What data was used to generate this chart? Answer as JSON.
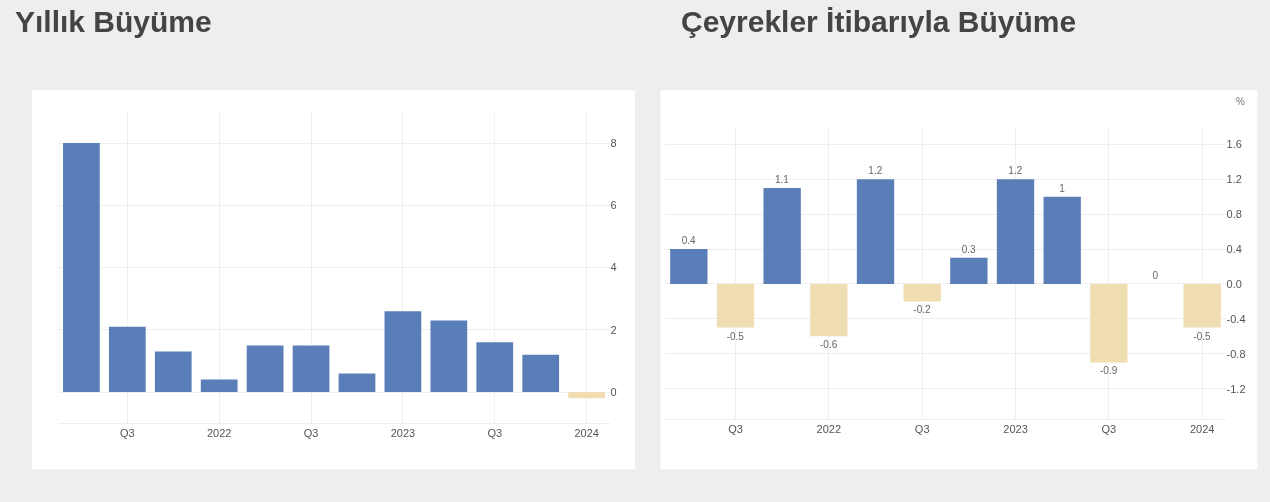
{
  "chart_data": [
    {
      "type": "bar",
      "title": "Yıllık Büyüme",
      "categories": [
        null,
        "Q3",
        null,
        "2022",
        null,
        "Q3",
        null,
        "2023",
        null,
        "Q3",
        null,
        "2024"
      ],
      "values": [
        8.0,
        2.1,
        1.3,
        0.4,
        1.5,
        1.5,
        0.6,
        2.6,
        2.3,
        1.6,
        1.2,
        -0.2
      ],
      "colors": [
        "#5a7fb8",
        "#5a7fb8",
        "#5a7fb8",
        "#5a7fb8",
        "#5a7fb8",
        "#5a7fb8",
        "#5a7fb8",
        "#5a7fb8",
        "#5a7fb8",
        "#5a7fb8",
        "#5a7fb8",
        "#f0ddb2"
      ],
      "ylim": [
        -1,
        9
      ],
      "yticks": [
        0,
        2,
        4,
        6,
        8
      ],
      "grid": true
    },
    {
      "type": "bar",
      "title": "Çeyrekler İtibarıyla Büyüme",
      "ylabel": "%",
      "categories": [
        null,
        "Q3",
        null,
        "2022",
        null,
        "Q3",
        null,
        "2023",
        null,
        "Q3",
        null,
        "2024"
      ],
      "values": [
        0.4,
        -0.5,
        1.1,
        -0.6,
        1.2,
        -0.2,
        0.3,
        1.2,
        1,
        -0.9,
        0,
        -0.5
      ],
      "colors": [
        "#5a7fb8",
        "#f0ddb2",
        "#5a7fb8",
        "#f0ddb2",
        "#5a7fb8",
        "#f0ddb2",
        "#5a7fb8",
        "#5a7fb8",
        "#5a7fb8",
        "#f0ddb2",
        "#5a7fb8",
        "#f0ddb2"
      ],
      "ylim": [
        -1.55,
        1.8
      ],
      "yticks": [
        1.6,
        1.2,
        0.8,
        0.4,
        {
          "value": 0,
          "label": "0.0"
        },
        -0.4,
        -0.8,
        -1.2
      ],
      "grid": true,
      "data_labels": true
    }
  ]
}
